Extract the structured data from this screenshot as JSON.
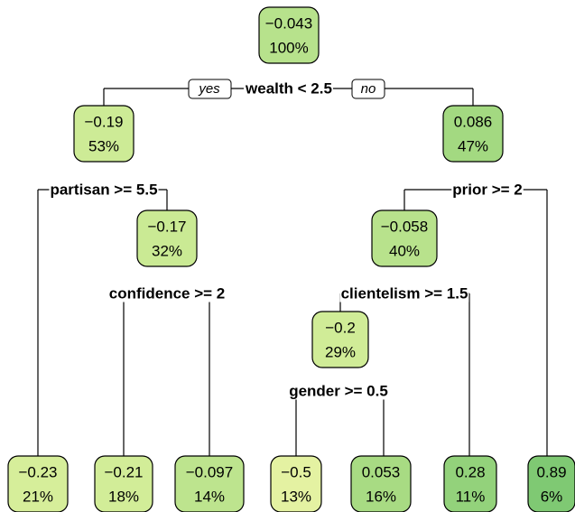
{
  "nodes": [
    {
      "value": "−0.043",
      "percent": "100%",
      "color": "#b7e28c"
    },
    {
      "value": "−0.19",
      "percent": "53%",
      "color": "#cdeb96"
    },
    {
      "value": "0.086",
      "percent": "47%",
      "color": "#a3d981"
    },
    {
      "value": "−0.17",
      "percent": "32%",
      "color": "#caea94"
    },
    {
      "value": "−0.058",
      "percent": "40%",
      "color": "#b8e28c"
    },
    {
      "value": "−0.2",
      "percent": "29%",
      "color": "#d0ec97"
    },
    {
      "value": "−0.23",
      "percent": "21%",
      "color": "#d6ee9a"
    },
    {
      "value": "−0.21",
      "percent": "18%",
      "color": "#d2ed98"
    },
    {
      "value": "−0.097",
      "percent": "14%",
      "color": "#bde48e"
    },
    {
      "value": "−0.5",
      "percent": "13%",
      "color": "#e4f2a2"
    },
    {
      "value": "0.053",
      "percent": "16%",
      "color": "#a8db83"
    },
    {
      "value": "0.28",
      "percent": "11%",
      "color": "#93d27b"
    },
    {
      "value": "0.89",
      "percent": "6%",
      "color": "#7fc973"
    }
  ],
  "splits": [
    {
      "label": "wealth < 2.5"
    },
    {
      "label": "partisan >= 5.5"
    },
    {
      "label": "confidence >= 2"
    },
    {
      "label": "prior >= 2"
    },
    {
      "label": "clientelism >= 1.5"
    },
    {
      "label": "gender >= 0.5"
    }
  ],
  "yes": "yes",
  "no": "no"
}
